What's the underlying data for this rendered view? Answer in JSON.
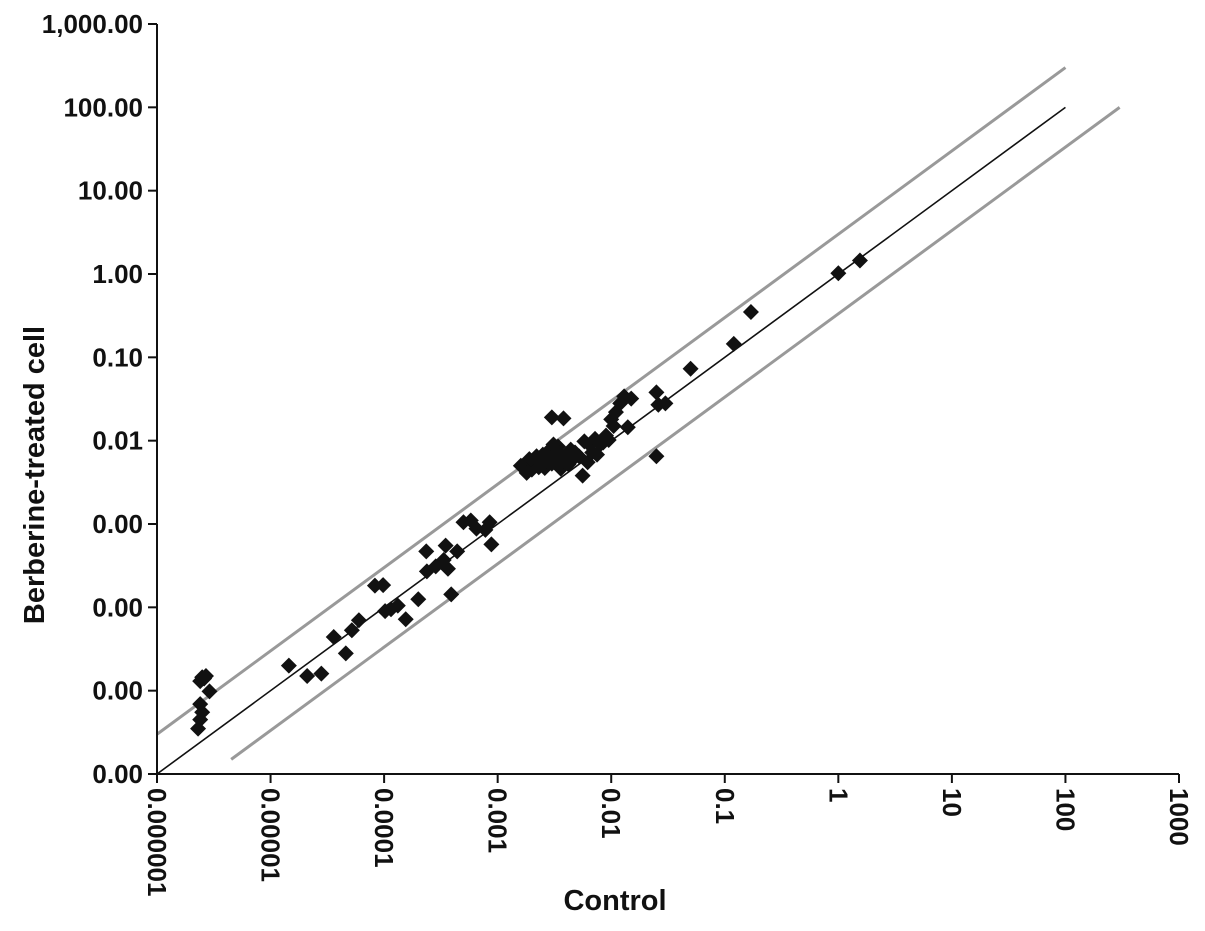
{
  "chart_data": {
    "type": "scatter",
    "title": "",
    "xlabel": "Control",
    "ylabel": "Berberine-treated cell",
    "xscale": "log",
    "yscale": "log",
    "xlim": [
      1e-06,
      1000
    ],
    "ylim": [
      1e-06,
      1000
    ],
    "x_ticks": [
      {
        "value": 1e-06,
        "label": "0.000001"
      },
      {
        "value": 1e-05,
        "label": "0.00001"
      },
      {
        "value": 0.0001,
        "label": "0.0001"
      },
      {
        "value": 0.001,
        "label": "0.001"
      },
      {
        "value": 0.01,
        "label": "0.01"
      },
      {
        "value": 0.1,
        "label": "0.1"
      },
      {
        "value": 1,
        "label": "1"
      },
      {
        "value": 10,
        "label": "10"
      },
      {
        "value": 100,
        "label": "100"
      },
      {
        "value": 1000,
        "label": "1000"
      }
    ],
    "y_ticks": [
      {
        "value": 1e-06,
        "label": "0.00"
      },
      {
        "value": 1e-05,
        "label": "0.00"
      },
      {
        "value": 0.0001,
        "label": "0.00"
      },
      {
        "value": 0.001,
        "label": "0.00"
      },
      {
        "value": 0.01,
        "label": "0.01"
      },
      {
        "value": 0.1,
        "label": "0.10"
      },
      {
        "value": 1,
        "label": "1.00"
      },
      {
        "value": 10,
        "label": "10.00"
      },
      {
        "value": 100,
        "label": "100.00"
      },
      {
        "value": 1000,
        "label": "1,000.00"
      }
    ],
    "reference_lines": [
      {
        "name": "y = x",
        "color": "#111111",
        "x_range": [
          1e-06,
          100
        ],
        "factor": 1
      },
      {
        "name": "upper bound",
        "color": "#999999",
        "x_range": [
          9e-07,
          100
        ],
        "factor": 3
      },
      {
        "name": "lower bound",
        "color": "#999999",
        "x_range": [
          4.5e-06,
          300
        ],
        "factor": 0.333
      }
    ],
    "marker": {
      "shape": "diamond",
      "color": "#111111"
    },
    "points": [
      [
        2.5e-06,
        1.45e-05
      ],
      [
        2.4e-06,
        1.3e-05
      ],
      [
        2.6e-06,
        1.4e-05
      ],
      [
        2.7e-06,
        1.5e-05
      ],
      [
        2.9e-06,
        9.8e-06
      ],
      [
        2.4e-06,
        6.9e-06
      ],
      [
        2.5e-06,
        5.5e-06
      ],
      [
        2.4e-06,
        4.5e-06
      ],
      [
        2.3e-06,
        3.5e-06
      ],
      [
        1.45e-05,
        2e-05
      ],
      [
        2.1e-05,
        1.5e-05
      ],
      [
        2.8e-05,
        1.6e-05
      ],
      [
        3.6e-05,
        4.4e-05
      ],
      [
        4.6e-05,
        2.8e-05
      ],
      [
        5.2e-05,
        5.3e-05
      ],
      [
        6e-05,
        7e-05
      ],
      [
        8.3e-05,
        0.000182
      ],
      [
        9.8e-05,
        0.000185
      ],
      [
        0.000102,
        9e-05
      ],
      [
        0.000115,
        9.5e-05
      ],
      [
        0.000132,
        0.000105
      ],
      [
        0.000155,
        7.2e-05
      ],
      [
        0.0002,
        0.000125
      ],
      [
        0.000235,
        0.00047
      ],
      [
        0.000238,
        0.00027
      ],
      [
        0.000285,
        0.00031
      ],
      [
        0.000335,
        0.00037
      ],
      [
        0.000348,
        0.00055
      ],
      [
        0.000365,
        0.00029
      ],
      [
        0.00039,
        0.000143
      ],
      [
        0.00044,
        0.00047
      ],
      [
        0.0005,
        0.00105
      ],
      [
        0.00058,
        0.0011
      ],
      [
        0.00065,
        0.00088
      ],
      [
        0.00078,
        0.00085
      ],
      [
        0.00085,
        0.00105
      ],
      [
        0.00088,
        0.00057
      ],
      [
        0.0016,
        0.005
      ],
      [
        0.0018,
        0.0041
      ],
      [
        0.0019,
        0.006
      ],
      [
        0.002,
        0.0045
      ],
      [
        0.0021,
        0.0055
      ],
      [
        0.0022,
        0.0065
      ],
      [
        0.0023,
        0.0048
      ],
      [
        0.0024,
        0.0052
      ],
      [
        0.0025,
        0.0068
      ],
      [
        0.0026,
        0.0047
      ],
      [
        0.0027,
        0.0058
      ],
      [
        0.0028,
        0.0075
      ],
      [
        0.0029,
        0.0062
      ],
      [
        0.003,
        0.0053
      ],
      [
        0.0031,
        0.009
      ],
      [
        0.0032,
        0.0055
      ],
      [
        0.0034,
        0.0085
      ],
      [
        0.0035,
        0.007
      ],
      [
        0.0036,
        0.0046
      ],
      [
        0.0038,
        0.0058
      ],
      [
        0.004,
        0.0068
      ],
      [
        0.0042,
        0.0052
      ],
      [
        0.0044,
        0.0078
      ],
      [
        0.0046,
        0.006
      ],
      [
        0.0048,
        0.0072
      ],
      [
        0.0052,
        0.0065
      ],
      [
        0.0056,
        0.0038
      ],
      [
        0.0058,
        0.0098
      ],
      [
        0.0062,
        0.0055
      ],
      [
        0.0065,
        0.0088
      ],
      [
        0.0068,
        0.0072
      ],
      [
        0.0072,
        0.0105
      ],
      [
        0.0075,
        0.0068
      ],
      [
        0.008,
        0.009
      ],
      [
        0.0085,
        0.0095
      ],
      [
        0.009,
        0.0115
      ],
      [
        0.0095,
        0.0102
      ],
      [
        0.01,
        0.018
      ],
      [
        0.0105,
        0.015
      ],
      [
        0.011,
        0.022
      ],
      [
        0.012,
        0.028
      ],
      [
        0.013,
        0.034
      ],
      [
        0.003,
        0.019
      ],
      [
        0.0038,
        0.0185
      ],
      [
        0.014,
        0.0145
      ],
      [
        0.015,
        0.032
      ],
      [
        0.025,
        0.0065
      ],
      [
        0.025,
        0.038
      ],
      [
        0.026,
        0.027
      ],
      [
        0.03,
        0.028
      ],
      [
        0.05,
        0.073
      ],
      [
        0.12,
        0.145
      ],
      [
        0.17,
        0.35
      ],
      [
        1.0,
        1.02
      ],
      [
        1.55,
        1.45
      ]
    ]
  }
}
